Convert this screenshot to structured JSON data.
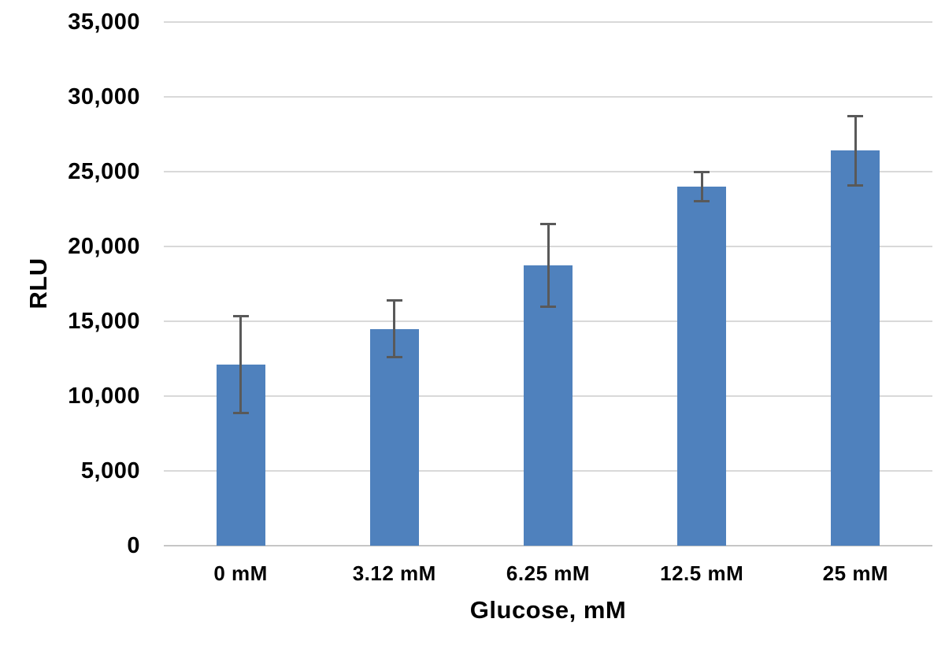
{
  "chart_data": {
    "type": "bar",
    "title": "",
    "xlabel": "Glucose, mM",
    "ylabel": "RLU",
    "categories": [
      "0 mM",
      "3.12 mM",
      "6.25 mM",
      "12.5 mM",
      "25 mM"
    ],
    "values": [
      12100,
      14500,
      18750,
      24000,
      26400
    ],
    "errors": [
      3250,
      1900,
      2800,
      1000,
      2350
    ],
    "ylim": [
      0,
      35000
    ],
    "ytick_step": 5000,
    "yticks": [
      0,
      5000,
      10000,
      15000,
      20000,
      25000,
      30000,
      35000
    ],
    "ytick_labels": [
      "0",
      "5,000",
      "10,000",
      "15,000",
      "20,000",
      "25,000",
      "30,000",
      "35,000"
    ],
    "grid": true,
    "legend": "none",
    "error_bars": "both-directions",
    "colors": {
      "bar": "#4F81BD",
      "error_bar": "#595959",
      "gridline": "#D9D9D9",
      "axis_line": "#C6C6C6",
      "text": "#000000",
      "background": "#FFFFFF"
    }
  }
}
